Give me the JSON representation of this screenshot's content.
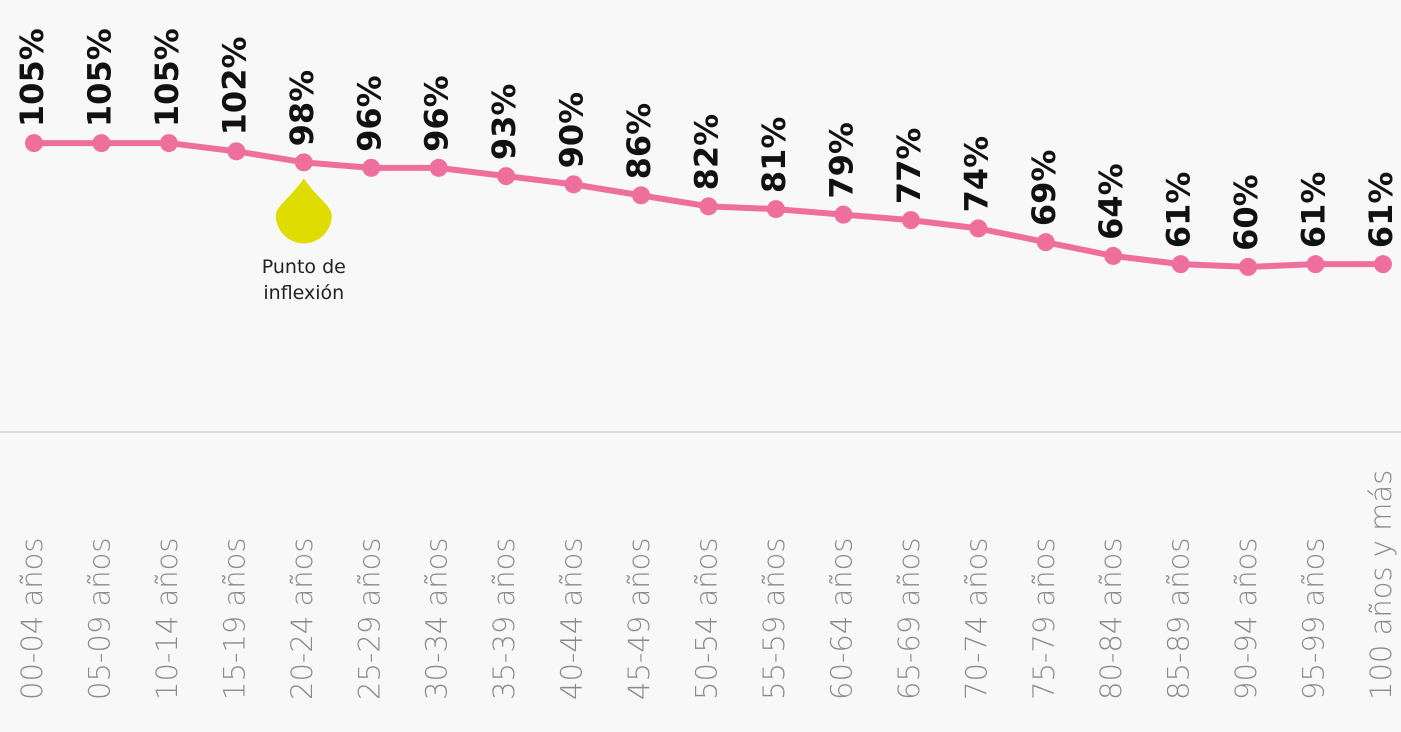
{
  "chart_data": {
    "type": "line",
    "categories": [
      "00-04 años",
      "05-09 años",
      "10-14 años",
      "15-19 años",
      "20-24 años",
      "25-29 años",
      "30-34 años",
      "35-39 años",
      "40-44 años",
      "45-49 años",
      "50-54 años",
      "55-59 años",
      "60-64 años",
      "65-69 años",
      "70-74 años",
      "75-79 años",
      "80-84 años",
      "85-89 años",
      "90-94 años",
      "95-99 años",
      "100 años y más"
    ],
    "values": [
      105,
      105,
      105,
      102,
      98,
      96,
      96,
      93,
      90,
      86,
      82,
      81,
      79,
      77,
      74,
      69,
      64,
      61,
      60,
      61,
      61
    ],
    "value_labels": [
      "105%",
      "105%",
      "105%",
      "102%",
      "98%",
      "96%",
      "96%",
      "93%",
      "90%",
      "86%",
      "82%",
      "81%",
      "79%",
      "77%",
      "74%",
      "69%",
      "64%",
      "61%",
      "60%",
      "61%",
      "61%"
    ],
    "color": "#ef6f9c",
    "ylim": [
      0,
      157
    ],
    "annotation": {
      "text": "Punto de inflexión",
      "index": 4,
      "color": "#dedc00"
    }
  }
}
